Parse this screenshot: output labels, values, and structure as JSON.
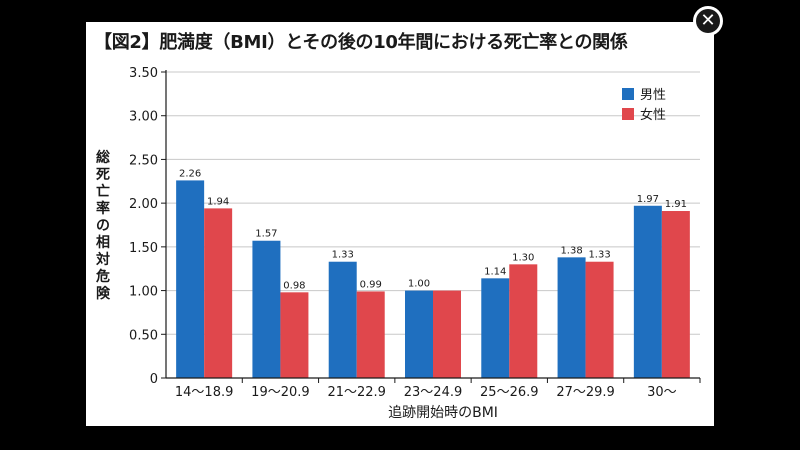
{
  "close_icon": "close-icon",
  "close_glyph": "✕",
  "chart_data": {
    "type": "bar",
    "title": "【図2】肥満度（BMI）とその後の10年間における死亡率との関係",
    "xlabel": "追跡開始時のBMI",
    "ylabel": "総死亡率の相対危険",
    "categories": [
      "14〜18.9",
      "19〜20.9",
      "21〜22.9",
      "23〜24.9",
      "25〜26.9",
      "27〜29.9",
      "30〜"
    ],
    "series": [
      {
        "name": "男性",
        "color": "#1f6fbf",
        "values": [
          2.26,
          1.57,
          1.33,
          1.0,
          1.14,
          1.38,
          1.97
        ],
        "labels": [
          "2.26",
          "1.57",
          "1.33",
          "1.00",
          "1.14",
          "1.38",
          "1.97"
        ]
      },
      {
        "name": "女性",
        "color": "#e0474c",
        "values": [
          1.94,
          0.98,
          0.99,
          1.0,
          1.3,
          1.33,
          1.91
        ],
        "labels": [
          "1.94",
          "0.98",
          "0.99",
          "",
          "1.30",
          "1.33",
          "1.91"
        ]
      }
    ],
    "yticks": [
      "0",
      "0.50",
      "1.00",
      "1.50",
      "2.00",
      "2.50",
      "3.00",
      "3.50"
    ],
    "ylim": [
      0,
      3.5
    ],
    "grid": true,
    "legend_position": "top-right"
  }
}
